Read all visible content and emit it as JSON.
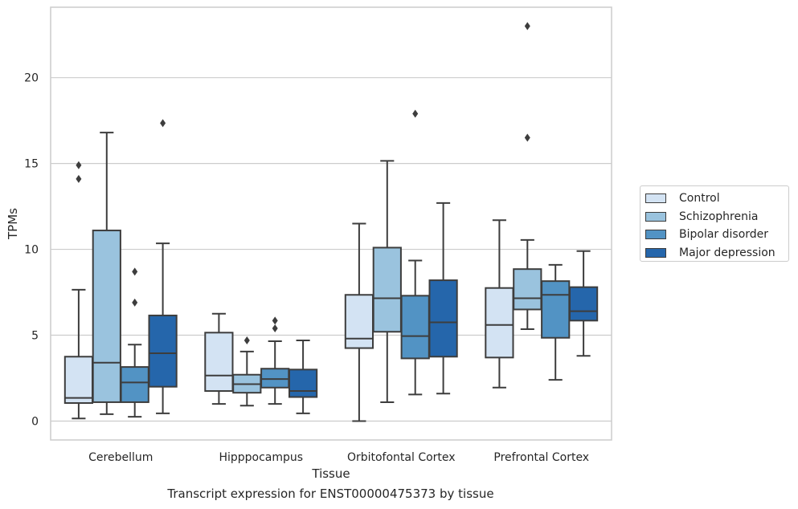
{
  "chart_data": {
    "type": "box",
    "caption": "Transcript expression for ENST00000475373 by tissue",
    "xlabel": "Tissue",
    "ylabel": "TPMs",
    "ylim": [
      -1.1,
      24.1
    ],
    "yticks": [
      0,
      5,
      10,
      15,
      20
    ],
    "grid": "horizontal",
    "legend_position": "right",
    "categories": [
      "Cerebellum",
      "Hipppocampus",
      "Orbitofontal Cortex",
      "Prefrontal Cortex"
    ],
    "series": [
      {
        "name": "Control",
        "color": "#d3e3f3",
        "boxes": [
          {
            "whisker_low": 0.15,
            "q1": 1.05,
            "median": 1.35,
            "q3": 3.75,
            "whisker_high": 7.65,
            "outliers": [
              14.9,
              14.1
            ]
          },
          {
            "whisker_low": 1.0,
            "q1": 1.75,
            "median": 2.65,
            "q3": 5.15,
            "whisker_high": 6.25,
            "outliers": []
          },
          {
            "whisker_low": 0.0,
            "q1": 4.25,
            "median": 4.8,
            "q3": 7.35,
            "whisker_high": 11.5,
            "outliers": []
          },
          {
            "whisker_low": 1.95,
            "q1": 3.7,
            "median": 5.6,
            "q3": 7.75,
            "whisker_high": 11.7,
            "outliers": []
          }
        ]
      },
      {
        "name": "Schizophrenia",
        "color": "#9ac3de",
        "boxes": [
          {
            "whisker_low": 0.4,
            "q1": 1.1,
            "median": 3.4,
            "q3": 11.1,
            "whisker_high": 16.8,
            "outliers": []
          },
          {
            "whisker_low": 0.9,
            "q1": 1.65,
            "median": 2.15,
            "q3": 2.7,
            "whisker_high": 4.05,
            "outliers": [
              4.7
            ]
          },
          {
            "whisker_low": 1.1,
            "q1": 5.2,
            "median": 7.15,
            "q3": 10.1,
            "whisker_high": 15.15,
            "outliers": []
          },
          {
            "whisker_low": 5.35,
            "q1": 6.5,
            "median": 7.15,
            "q3": 8.85,
            "whisker_high": 10.55,
            "outliers": [
              23.0,
              16.5
            ]
          }
        ]
      },
      {
        "name": "Bipolar disorder",
        "color": "#5293c4",
        "boxes": [
          {
            "whisker_low": 0.25,
            "q1": 1.1,
            "median": 2.25,
            "q3": 3.15,
            "whisker_high": 4.45,
            "outliers": [
              8.7,
              6.9
            ]
          },
          {
            "whisker_low": 1.0,
            "q1": 1.95,
            "median": 2.45,
            "q3": 3.05,
            "whisker_high": 4.65,
            "outliers": [
              5.85,
              5.4
            ]
          },
          {
            "whisker_low": 1.55,
            "q1": 3.65,
            "median": 4.95,
            "q3": 7.3,
            "whisker_high": 9.35,
            "outliers": [
              17.9
            ]
          },
          {
            "whisker_low": 2.4,
            "q1": 4.85,
            "median": 7.35,
            "q3": 8.15,
            "whisker_high": 9.1,
            "outliers": []
          }
        ]
      },
      {
        "name": "Major depression",
        "color": "#2566ab",
        "boxes": [
          {
            "whisker_low": 0.45,
            "q1": 2.0,
            "median": 3.95,
            "q3": 6.15,
            "whisker_high": 10.35,
            "outliers": [
              17.35
            ]
          },
          {
            "whisker_low": 0.45,
            "q1": 1.4,
            "median": 1.75,
            "q3": 3.0,
            "whisker_high": 4.7,
            "outliers": []
          },
          {
            "whisker_low": 1.6,
            "q1": 3.75,
            "median": 5.75,
            "q3": 8.2,
            "whisker_high": 12.7,
            "outliers": []
          },
          {
            "whisker_low": 3.8,
            "q1": 5.85,
            "median": 6.4,
            "q3": 7.8,
            "whisker_high": 9.9,
            "outliers": []
          }
        ]
      }
    ]
  }
}
